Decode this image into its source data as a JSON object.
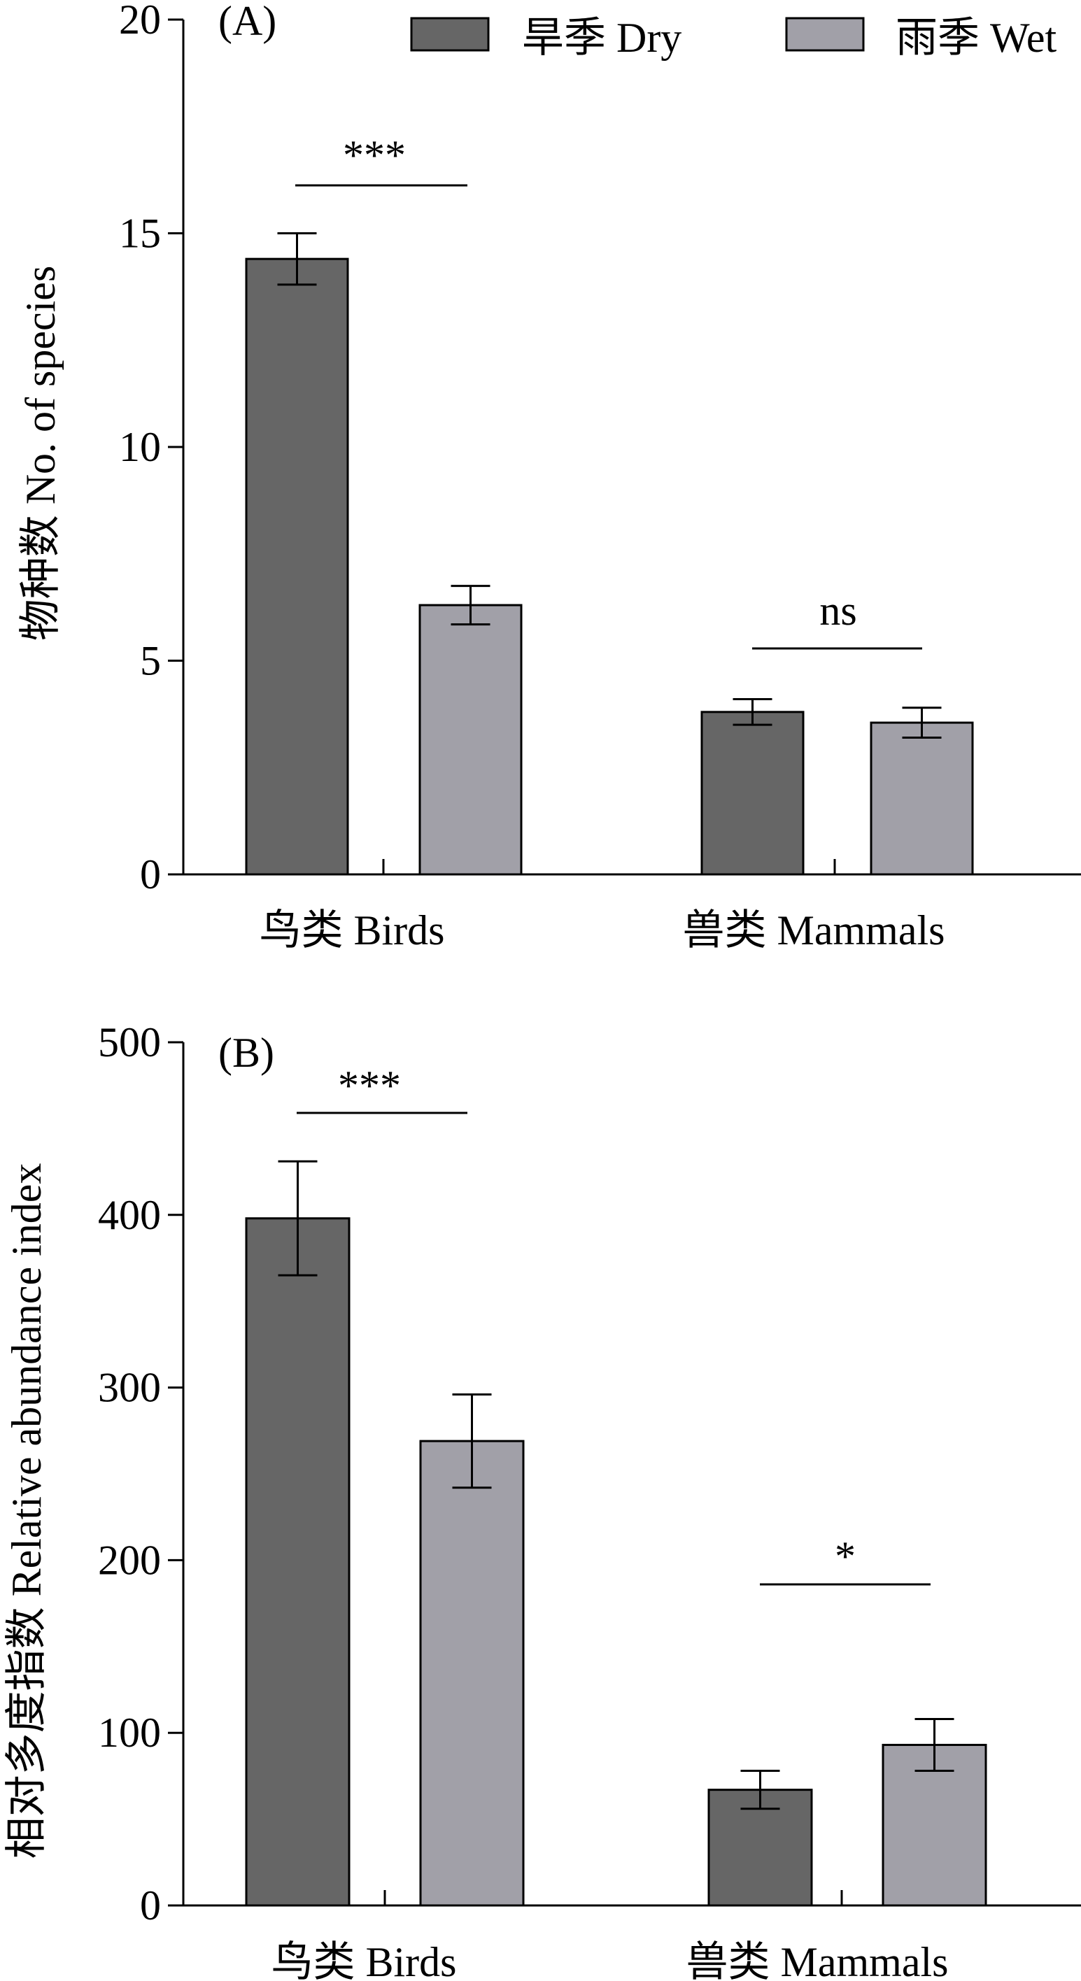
{
  "chart_data": [
    {
      "type": "bar",
      "panel_label": "(A)",
      "ylabel": "物种数 No. of species",
      "ylim": [
        0,
        20
      ],
      "yticks": [
        "0",
        "5",
        "10",
        "15",
        "20"
      ],
      "categories": [
        "鸟类 Birds",
        "兽类  Mammals"
      ],
      "series": [
        {
          "name": "旱季 Dry",
          "color": "#666666",
          "values": [
            14.4,
            3.8
          ],
          "errors": [
            0.6,
            0.3
          ]
        },
        {
          "name": "雨季 Wet",
          "color": "#a1a0a8",
          "values": [
            6.3,
            3.55
          ],
          "errors": [
            0.45,
            0.35
          ]
        }
      ],
      "significance": [
        "***",
        "ns"
      ],
      "legend": "top-right"
    },
    {
      "type": "bar",
      "panel_label": "(B)",
      "ylabel": "相对多度指数 Relative abundance index",
      "ylim": [
        0,
        500
      ],
      "yticks": [
        "0",
        "100",
        "200",
        "300",
        "400",
        "500"
      ],
      "categories": [
        "鸟类 Birds",
        "兽类  Mammals"
      ],
      "series": [
        {
          "name": "旱季 Dry",
          "color": "#666666",
          "values": [
            398,
            67
          ],
          "errors": [
            33,
            11
          ]
        },
        {
          "name": "雨季 Wet",
          "color": "#a1a0a8",
          "values": [
            269,
            93
          ],
          "errors": [
            27,
            15
          ]
        }
      ],
      "significance": [
        "***",
        "*"
      ]
    }
  ]
}
